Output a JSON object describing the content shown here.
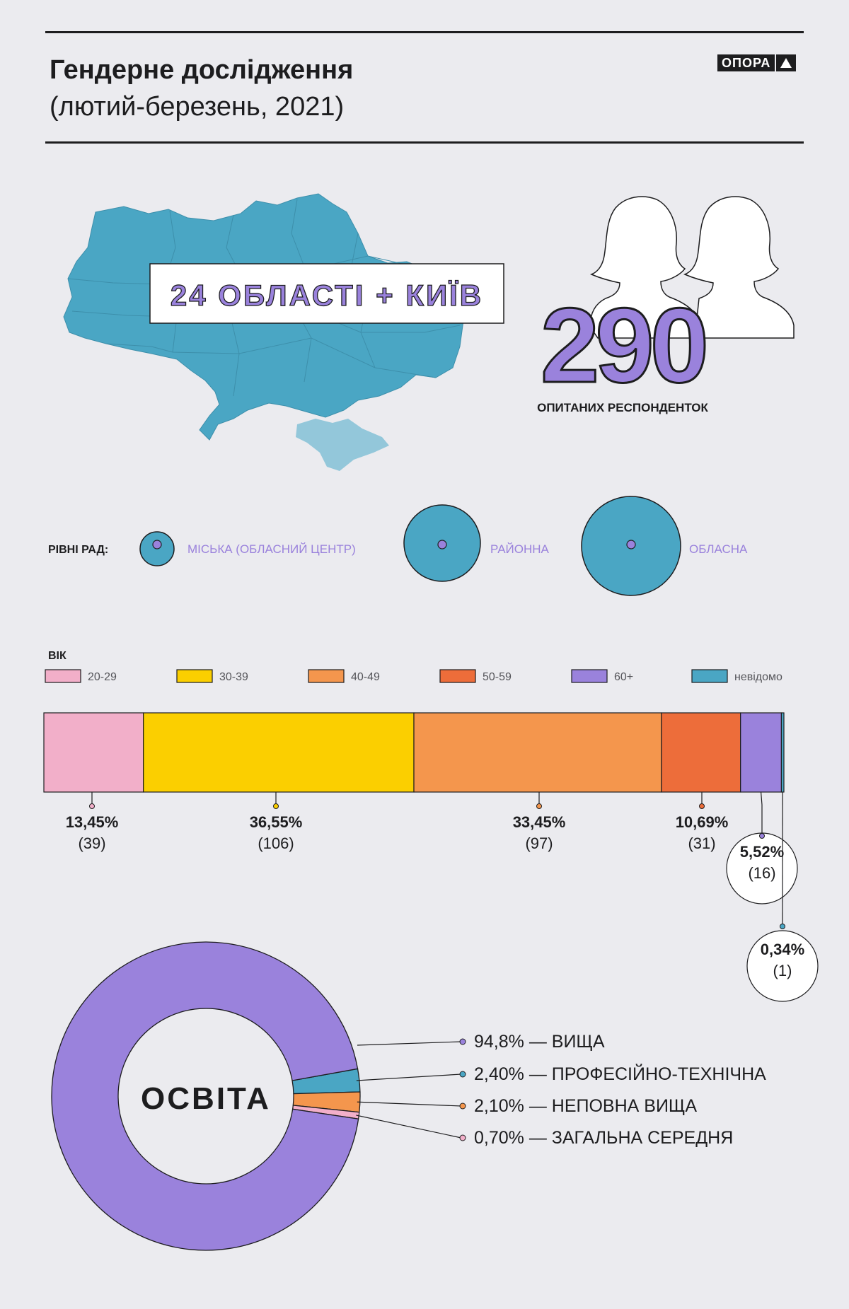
{
  "header": {
    "title": "Гендерне дослідження",
    "subtitle": "(лютий-березень, 2021)",
    "logo_text": "ОПОРА"
  },
  "map_section": {
    "regions_label": "24 ОБЛАСТІ + КИЇВ",
    "respondents_number": "290",
    "respondents_caption": "ОПИТАНИХ РЕСПОНДЕНТОК"
  },
  "council_levels": {
    "label": "РІВНІ РАД:",
    "items": [
      {
        "name": "МІСЬКА (ОБЛАСНИЙ ЦЕНТР)",
        "size": "small"
      },
      {
        "name": "РАЙОННА",
        "size": "medium"
      },
      {
        "name": "ОБЛАСНА",
        "size": "large"
      }
    ]
  },
  "chart_data": [
    {
      "type": "bar",
      "title": "ВІК",
      "orientation": "horizontal-stacked-100",
      "categories": [
        "20-29",
        "30-39",
        "40-49",
        "50-59",
        "60+",
        "невідомо"
      ],
      "values": [
        13.45,
        36.55,
        33.45,
        10.69,
        5.52,
        0.34
      ],
      "counts": [
        39,
        106,
        97,
        31,
        16,
        1
      ],
      "labels": [
        "13,45%",
        "36,55%",
        "33,45%",
        "10,69%",
        "5,52%",
        "0,34%"
      ],
      "count_labels": [
        "(39)",
        "(106)",
        "(97)",
        "(31)",
        "(16)",
        "(1)"
      ],
      "colors": [
        "#f2afc9",
        "#fbcf00",
        "#f4964d",
        "#ed6d3a",
        "#9a82dc",
        "#4aa6c4"
      ],
      "legend_position": "top"
    },
    {
      "type": "pie",
      "donut": true,
      "title": "ОСВІТА",
      "categories": [
        "ВИЩА",
        "ПРОФЕСІЙНО-ТЕХНІЧНА",
        "НЕПОВНА ВИЩА",
        "ЗАГАЛЬНА СЕРЕДНЯ"
      ],
      "values": [
        94.8,
        2.4,
        2.1,
        0.7
      ],
      "labels": [
        "94,8% — ВИЩА",
        "2,40% — ПРОФЕСІЙНО-ТЕХНІЧНА",
        "2,10% — НЕПОВНА ВИЩА",
        "0,70% — ЗАГАЛЬНА СЕРЕДНЯ"
      ],
      "colors": [
        "#9a82dc",
        "#4aa6c4",
        "#f4964d",
        "#f2afc9"
      ]
    }
  ],
  "colors": {
    "background": "#ebebef",
    "map": "#4aa6c4",
    "crimea": "#93c7da",
    "accent": "#9a82dc",
    "text": "#1d1d1f"
  }
}
